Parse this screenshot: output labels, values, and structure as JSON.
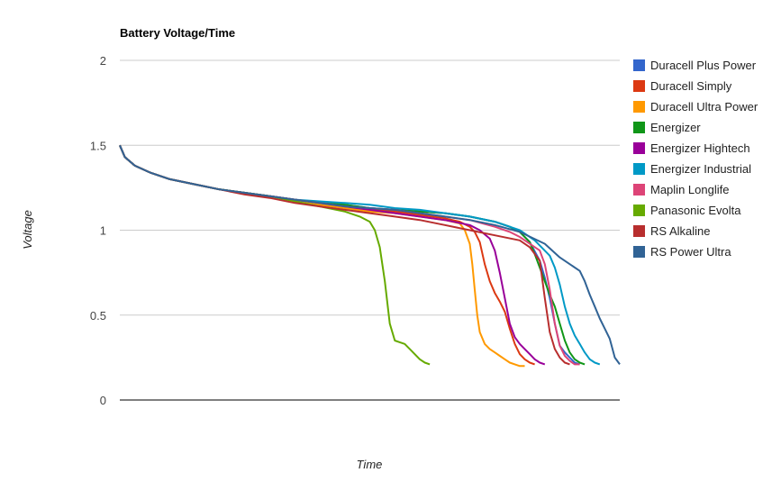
{
  "chart_data": {
    "type": "line",
    "title": "Battery Voltage/Time",
    "xlabel": "Time",
    "ylabel": "Voltage",
    "ylim": [
      0,
      2
    ],
    "yticks": [
      {
        "value": 0,
        "label": "0"
      },
      {
        "value": 0.5,
        "label": "0.5"
      },
      {
        "value": 1,
        "label": "1"
      },
      {
        "value": 1.5,
        "label": "1.5"
      },
      {
        "value": 2,
        "label": "2"
      }
    ],
    "xlim": [
      0,
      100
    ],
    "grid": true,
    "legend_position": "right",
    "series": [
      {
        "name": "Duracell Plus Power",
        "color": "#3366cc",
        "x": [
          0,
          1,
          3,
          6,
          10,
          15,
          20,
          25,
          30,
          35,
          40,
          45,
          50,
          55,
          60,
          65,
          70,
          75,
          78,
          80,
          82,
          84,
          85,
          86,
          87,
          88,
          89,
          90,
          91,
          92
        ],
        "y": [
          1.5,
          1.43,
          1.38,
          1.34,
          1.3,
          1.27,
          1.24,
          1.22,
          1.2,
          1.18,
          1.16,
          1.15,
          1.13,
          1.12,
          1.11,
          1.1,
          1.08,
          1.05,
          1.02,
          0.99,
          0.93,
          0.82,
          0.72,
          0.6,
          0.45,
          0.32,
          0.28,
          0.25,
          0.22,
          0.21
        ]
      },
      {
        "name": "Duracell Simply",
        "color": "#dc3912",
        "x": [
          0,
          1,
          3,
          6,
          10,
          15,
          20,
          25,
          30,
          35,
          40,
          45,
          50,
          55,
          60,
          65,
          68,
          70,
          71,
          72,
          73,
          74,
          75,
          76,
          77,
          78,
          79,
          80,
          81,
          82,
          83
        ],
        "y": [
          1.5,
          1.43,
          1.38,
          1.34,
          1.3,
          1.27,
          1.24,
          1.22,
          1.2,
          1.18,
          1.16,
          1.14,
          1.12,
          1.11,
          1.09,
          1.07,
          1.05,
          1.02,
          0.99,
          0.93,
          0.8,
          0.7,
          0.63,
          0.58,
          0.52,
          0.42,
          0.33,
          0.27,
          0.24,
          0.22,
          0.21
        ]
      },
      {
        "name": "Duracell Ultra Power",
        "color": "#ff9900",
        "x": [
          0,
          1,
          3,
          6,
          10,
          15,
          20,
          25,
          30,
          35,
          40,
          45,
          50,
          55,
          60,
          65,
          68,
          69,
          70,
          70.5,
          71,
          71.5,
          72,
          73,
          74,
          75,
          76,
          77,
          78,
          79,
          80,
          81
        ],
        "y": [
          1.5,
          1.43,
          1.38,
          1.34,
          1.3,
          1.27,
          1.24,
          1.22,
          1.2,
          1.18,
          1.15,
          1.13,
          1.11,
          1.1,
          1.08,
          1.06,
          1.04,
          1.0,
          0.92,
          0.8,
          0.65,
          0.5,
          0.4,
          0.33,
          0.3,
          0.28,
          0.26,
          0.24,
          0.22,
          0.21,
          0.2,
          0.2
        ]
      },
      {
        "name": "Energizer",
        "color": "#109618",
        "x": [
          0,
          1,
          3,
          6,
          10,
          15,
          20,
          25,
          30,
          35,
          40,
          45,
          50,
          55,
          60,
          65,
          70,
          75,
          78,
          80,
          82,
          83,
          84,
          85,
          86,
          87,
          88,
          89,
          90,
          91,
          92,
          93
        ],
        "y": [
          1.5,
          1.43,
          1.38,
          1.34,
          1.3,
          1.27,
          1.24,
          1.22,
          1.2,
          1.18,
          1.16,
          1.15,
          1.13,
          1.12,
          1.11,
          1.1,
          1.08,
          1.05,
          1.02,
          0.99,
          0.93,
          0.86,
          0.78,
          0.7,
          0.62,
          0.55,
          0.45,
          0.35,
          0.28,
          0.24,
          0.22,
          0.21
        ]
      },
      {
        "name": "Energizer Hightech",
        "color": "#990099",
        "x": [
          0,
          1,
          3,
          6,
          10,
          15,
          20,
          25,
          30,
          35,
          40,
          45,
          50,
          55,
          60,
          65,
          70,
          72,
          74,
          75,
          76,
          77,
          78,
          79,
          80,
          81,
          82,
          83,
          84,
          85
        ],
        "y": [
          1.5,
          1.43,
          1.38,
          1.34,
          1.3,
          1.27,
          1.24,
          1.22,
          1.2,
          1.18,
          1.16,
          1.14,
          1.12,
          1.1,
          1.08,
          1.06,
          1.03,
          1.0,
          0.95,
          0.88,
          0.75,
          0.6,
          0.45,
          0.37,
          0.33,
          0.3,
          0.27,
          0.24,
          0.22,
          0.21
        ]
      },
      {
        "name": "Energizer Industrial",
        "color": "#0099c6",
        "x": [
          0,
          1,
          3,
          6,
          10,
          15,
          20,
          25,
          30,
          35,
          40,
          45,
          50,
          55,
          60,
          65,
          70,
          75,
          80,
          83,
          86,
          87,
          88,
          89,
          90,
          91,
          92,
          93,
          94,
          95,
          96
        ],
        "y": [
          1.5,
          1.43,
          1.38,
          1.34,
          1.3,
          1.27,
          1.24,
          1.22,
          1.2,
          1.18,
          1.17,
          1.16,
          1.15,
          1.13,
          1.12,
          1.1,
          1.08,
          1.05,
          1.0,
          0.94,
          0.85,
          0.78,
          0.68,
          0.55,
          0.45,
          0.38,
          0.33,
          0.28,
          0.24,
          0.22,
          0.21
        ]
      },
      {
        "name": "Maplin Longlife",
        "color": "#dd4477",
        "x": [
          0,
          1,
          3,
          6,
          10,
          15,
          20,
          25,
          30,
          35,
          40,
          45,
          50,
          55,
          60,
          65,
          70,
          75,
          78,
          80,
          82,
          84,
          85,
          86,
          87,
          88,
          89,
          90,
          91,
          92
        ],
        "y": [
          1.5,
          1.43,
          1.38,
          1.34,
          1.3,
          1.27,
          1.24,
          1.22,
          1.2,
          1.18,
          1.16,
          1.14,
          1.13,
          1.12,
          1.1,
          1.08,
          1.06,
          1.02,
          0.99,
          0.96,
          0.92,
          0.88,
          0.8,
          0.65,
          0.45,
          0.32,
          0.26,
          0.23,
          0.21,
          0.21
        ]
      },
      {
        "name": "Panasonic Evolta",
        "color": "#66aa00",
        "x": [
          0,
          1,
          3,
          6,
          10,
          15,
          20,
          25,
          30,
          35,
          40,
          45,
          48,
          50,
          51,
          52,
          53,
          54,
          55,
          56,
          57,
          58,
          59,
          60,
          61,
          62
        ],
        "y": [
          1.5,
          1.43,
          1.38,
          1.34,
          1.3,
          1.27,
          1.24,
          1.22,
          1.2,
          1.17,
          1.14,
          1.11,
          1.08,
          1.05,
          1.0,
          0.9,
          0.7,
          0.45,
          0.35,
          0.34,
          0.33,
          0.3,
          0.27,
          0.24,
          0.22,
          0.21
        ]
      },
      {
        "name": "RS Alkaline",
        "color": "#b82e2e",
        "x": [
          0,
          1,
          3,
          6,
          10,
          15,
          20,
          25,
          30,
          35,
          40,
          45,
          50,
          55,
          60,
          65,
          70,
          75,
          80,
          82,
          84,
          85,
          86,
          87,
          88,
          89,
          90
        ],
        "y": [
          1.5,
          1.43,
          1.38,
          1.34,
          1.3,
          1.27,
          1.24,
          1.21,
          1.19,
          1.16,
          1.14,
          1.12,
          1.1,
          1.08,
          1.06,
          1.03,
          1.0,
          0.97,
          0.94,
          0.9,
          0.82,
          0.6,
          0.4,
          0.3,
          0.25,
          0.22,
          0.21
        ]
      },
      {
        "name": "RS Power Ultra",
        "color": "#316395",
        "x": [
          0,
          1,
          3,
          6,
          10,
          15,
          20,
          25,
          30,
          35,
          40,
          45,
          50,
          55,
          60,
          65,
          70,
          75,
          80,
          85,
          88,
          90,
          92,
          93,
          94,
          95,
          96,
          97,
          98,
          99,
          100
        ],
        "y": [
          1.5,
          1.43,
          1.38,
          1.34,
          1.3,
          1.27,
          1.24,
          1.22,
          1.2,
          1.18,
          1.16,
          1.14,
          1.13,
          1.12,
          1.1,
          1.08,
          1.06,
          1.03,
          0.99,
          0.92,
          0.84,
          0.8,
          0.76,
          0.7,
          0.62,
          0.55,
          0.48,
          0.42,
          0.36,
          0.25,
          0.21
        ]
      }
    ]
  }
}
